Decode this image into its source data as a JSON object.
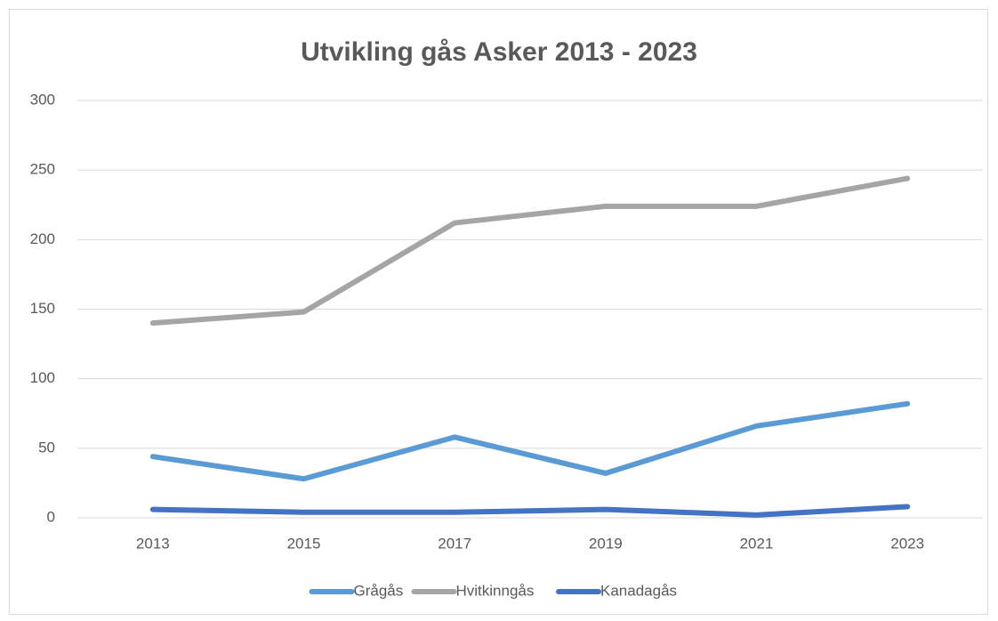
{
  "chart_data": {
    "type": "line",
    "title": "Utvikling gås Asker 2013 - 2023",
    "categories": [
      "2013",
      "2015",
      "2017",
      "2019",
      "2021",
      "2023"
    ],
    "series": [
      {
        "name": "Grågås",
        "color": "#5b9bd5",
        "values": [
          44,
          28,
          58,
          32,
          66,
          82
        ]
      },
      {
        "name": "Hvitkinngås",
        "color": "#a5a5a5",
        "values": [
          140,
          148,
          212,
          224,
          224,
          244
        ]
      },
      {
        "name": "Kanadagås",
        "color": "#4472c4",
        "values": [
          6,
          4,
          4,
          6,
          2,
          8
        ]
      }
    ],
    "ylim": [
      0,
      300
    ],
    "yticks": [
      0,
      50,
      100,
      150,
      200,
      250,
      300
    ],
    "grid": true,
    "legend": "bottom"
  }
}
